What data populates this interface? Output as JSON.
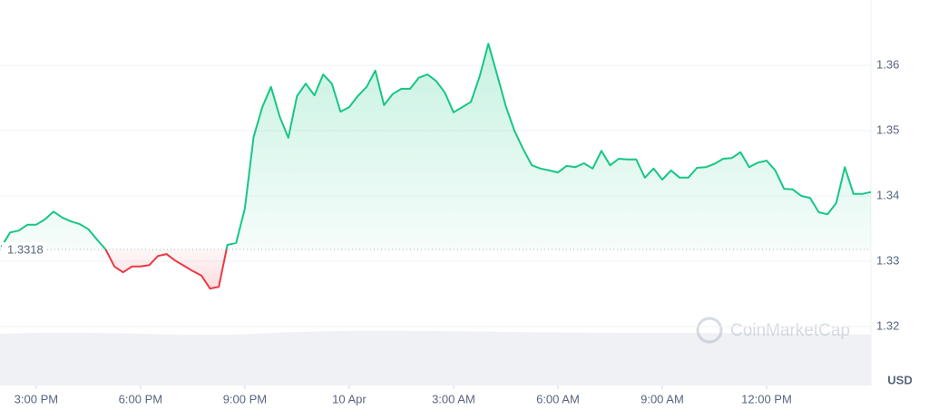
{
  "chart_data": {
    "type": "line",
    "x": [
      14,
      14.25,
      14.5,
      14.75,
      15,
      15.25,
      15.5,
      15.75,
      16,
      16.25,
      16.5,
      16.75,
      17,
      17.25,
      17.5,
      17.75,
      18,
      18.25,
      18.5,
      18.75,
      19,
      19.25,
      19.5,
      19.75,
      20,
      20.25,
      20.5,
      20.75,
      21,
      21.25,
      21.5,
      21.75,
      22,
      22.25,
      22.5,
      22.75,
      23,
      23.25,
      23.5,
      23.75,
      24,
      24.25,
      24.5,
      24.75,
      25,
      25.25,
      25.5,
      25.75,
      26,
      26.25,
      26.5,
      26.75,
      27,
      27.25,
      27.5,
      27.75,
      28,
      28.25,
      28.5,
      28.75,
      29,
      29.25,
      29.5,
      29.75,
      30,
      30.25,
      30.5,
      30.75,
      31,
      31.25,
      31.5,
      31.75,
      32,
      32.25,
      32.5,
      32.75,
      33,
      33.25,
      33.5,
      33.75,
      34,
      34.25,
      34.5,
      34.75,
      35,
      35.25,
      35.5,
      35.75,
      36,
      36.25,
      36.5,
      36.75,
      37,
      37.25,
      37.5,
      37.75,
      38,
      38.25,
      38.5,
      38.75,
      39
    ],
    "values": [
      1.3322,
      1.3344,
      1.3347,
      1.3356,
      1.3356,
      1.3364,
      1.3376,
      1.3367,
      1.3361,
      1.3357,
      1.3349,
      1.3333,
      1.3318,
      1.3292,
      1.3283,
      1.3292,
      1.3292,
      1.3294,
      1.3308,
      1.3311,
      1.3301,
      1.3293,
      1.3285,
      1.3278,
      1.3258,
      1.3261,
      1.3325,
      1.3328,
      1.3381,
      1.349,
      1.3536,
      1.3567,
      1.3522,
      1.3489,
      1.3553,
      1.3572,
      1.3554,
      1.3586,
      1.3572,
      1.3529,
      1.3536,
      1.3553,
      1.3567,
      1.3592,
      1.3539,
      1.3556,
      1.3564,
      1.3564,
      1.3581,
      1.3586,
      1.3576,
      1.3558,
      1.3528,
      1.3536,
      1.3544,
      1.3583,
      1.3633,
      1.3586,
      1.3538,
      1.35,
      1.3472,
      1.3447,
      1.3442,
      1.3439,
      1.3436,
      1.3446,
      1.3444,
      1.345,
      1.3442,
      1.3469,
      1.3447,
      1.3457,
      1.3456,
      1.3456,
      1.3428,
      1.3442,
      1.3425,
      1.3439,
      1.3428,
      1.3428,
      1.3443,
      1.3444,
      1.3449,
      1.3457,
      1.3458,
      1.3467,
      1.3444,
      1.3451,
      1.3454,
      1.3439,
      1.3411,
      1.341,
      1.34,
      1.3397,
      1.3375,
      1.3372,
      1.3389,
      1.3444,
      1.3403,
      1.3403,
      1.3406
    ],
    "baseline": 1.3318,
    "color_up": "#16c784",
    "color_down": "#ea3943",
    "xlim": [
      13.96,
      39.0
    ],
    "xticks": [
      {
        "value": 15,
        "label": "3:00 PM"
      },
      {
        "value": 18,
        "label": "6:00 PM"
      },
      {
        "value": 21,
        "label": "9:00 PM"
      },
      {
        "value": 24,
        "label": "10 Apr"
      },
      {
        "value": 27,
        "label": "3:00 AM"
      },
      {
        "value": 30,
        "label": "6:00 AM"
      },
      {
        "value": 33,
        "label": "9:00 AM"
      },
      {
        "value": 36,
        "label": "12:00 PM"
      }
    ],
    "ylim": [
      1.32,
      1.37
    ],
    "yticks": [
      1.32,
      1.33,
      1.34,
      1.35,
      1.36
    ],
    "grid": true,
    "unit_label": "USD",
    "watermark": "CoinMarketCap"
  }
}
